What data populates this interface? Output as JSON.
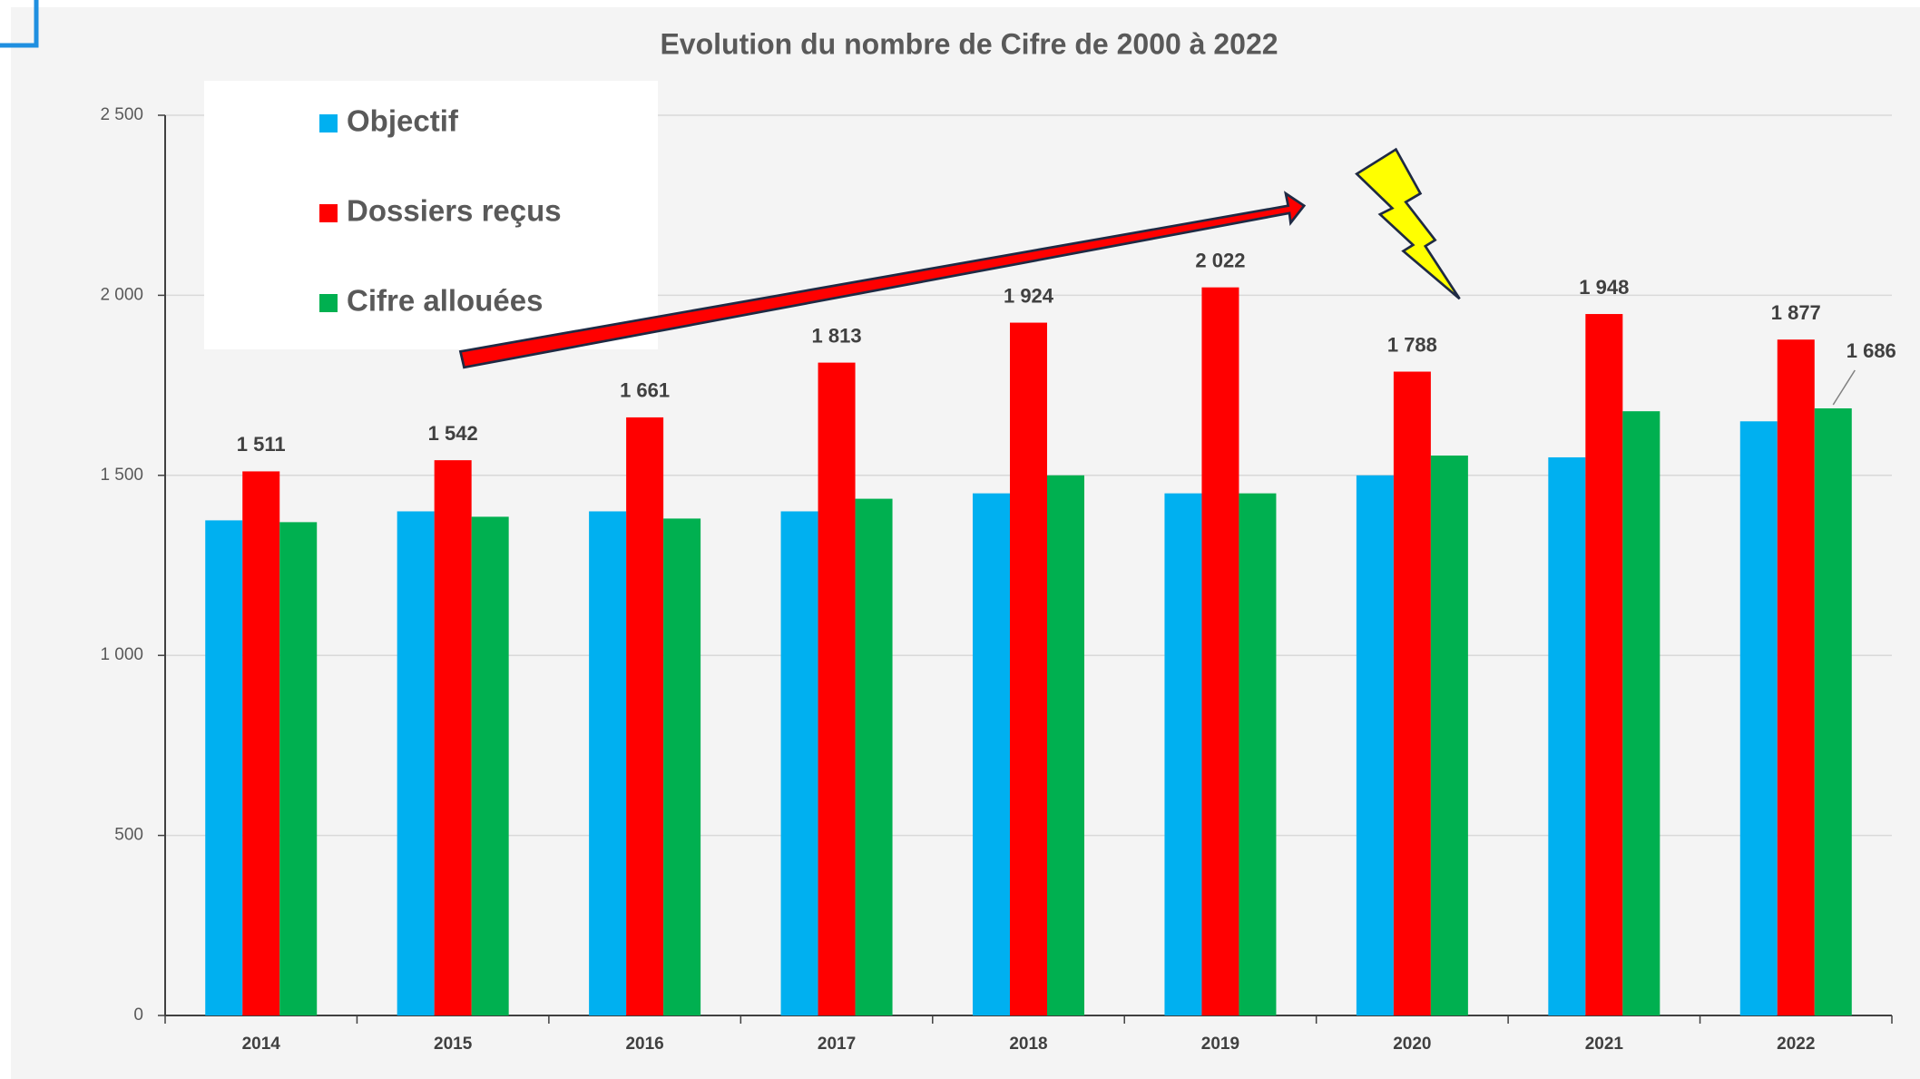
{
  "chart_data": {
    "type": "bar",
    "title": "Evolution du nombre de Cifre de 2000 à 2022",
    "categories": [
      "2014",
      "2015",
      "2016",
      "2017",
      "2018",
      "2019",
      "2020",
      "2021",
      "2022"
    ],
    "series": [
      {
        "name": "Objectif",
        "color": "#00b0f0",
        "values": [
          1375,
          1400,
          1400,
          1400,
          1450,
          1450,
          1500,
          1550,
          1650
        ]
      },
      {
        "name": "Dossiers reçus",
        "color": "#ff0000",
        "values": [
          1511,
          1542,
          1661,
          1813,
          1924,
          2022,
          1788,
          1948,
          1877
        ],
        "value_labels": [
          "1 511",
          "1 542",
          "1 661",
          "1 813",
          "1 924",
          "2 022",
          "1 788",
          "1 948",
          "1 877"
        ]
      },
      {
        "name": "Cifre allouées",
        "color": "#00b050",
        "values": [
          1370,
          1385,
          1380,
          1435,
          1500,
          1450,
          1555,
          1678,
          1686
        ],
        "value_labels": [
          null,
          null,
          null,
          null,
          null,
          null,
          null,
          null,
          "1 686"
        ]
      }
    ],
    "ylim": [
      0,
      2500
    ],
    "yticks": [
      0,
      500,
      {
        "value": 1000,
        "label": "1 000"
      },
      {
        "value": 1500,
        "label": "1 500"
      },
      {
        "value": 2000,
        "label": "2 000"
      },
      {
        "value": 2500,
        "label": "2 500"
      }
    ],
    "grid": true,
    "legend": "top-left"
  }
}
